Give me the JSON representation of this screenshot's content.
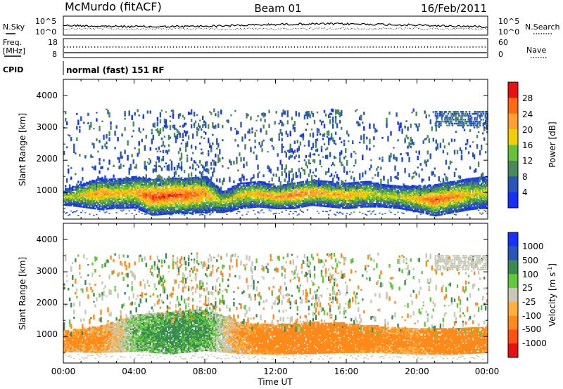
{
  "header": {
    "station": "McMurdo (fitACF)",
    "beam": "Beam 01",
    "date": "16/Feb/2011"
  },
  "strips": {
    "nsky": {
      "label": "N.Sky",
      "ticks": [
        "10^5",
        "10^0"
      ],
      "right_label": "N.Search",
      "right_ticks": [
        "10^5",
        "10^0"
      ]
    },
    "freq": {
      "label_line1": "Freq.",
      "label_line2": "[MHz]",
      "ticks": [
        "18",
        "8"
      ],
      "right_label": "Nave",
      "right_ticks": [
        "60",
        "0"
      ]
    },
    "cpid": {
      "label": "CPID",
      "program": "normal (fast) 151 RF"
    }
  },
  "axes": {
    "x_label": "Time UT",
    "x_ticks": [
      "00:00",
      "04:00",
      "08:00",
      "12:00",
      "16:00",
      "20:00",
      "00:00"
    ],
    "y_label": "Slant Range [km]",
    "y_ticks": [
      "1000",
      "2000",
      "3000",
      "4000"
    ]
  },
  "colorbars": {
    "power": {
      "label": "Power [dB]",
      "ticks": [
        "4",
        "8",
        "12",
        "16",
        "20",
        "24",
        "28"
      ],
      "colors": [
        "#1530ff",
        "#2a55b8",
        "#4a8a5a",
        "#66c23a",
        "#f0d000",
        "#ffa030",
        "#ff6a10",
        "#e81010"
      ]
    },
    "velocity": {
      "label": "Velocity [m s",
      "label_sup": "-1",
      "label_end": "]",
      "ticks": [
        "1000",
        "500",
        "100",
        "25",
        "-25",
        "-100",
        "-500",
        "-1000"
      ],
      "colors": [
        "#1530ff",
        "#2a55b8",
        "#3a8a56",
        "#60c83a",
        "#c8c8b8",
        "#ffb040",
        "#ff8a1a",
        "#ff5010",
        "#e81010"
      ]
    }
  },
  "chart_data": [
    {
      "type": "heatmap",
      "title": "",
      "xlabel": "Time UT",
      "ylabel": "Slant Range [km]",
      "x_range_hours": [
        0,
        24
      ],
      "y_range_km": [
        180,
        4500
      ],
      "colorbar_label": "Power [dB]",
      "main_echo_band": [
        {
          "t": 0,
          "center_km": 850,
          "half_width_km": 150,
          "peak_dB": 16
        },
        {
          "t": 1,
          "center_km": 900,
          "half_width_km": 220,
          "peak_dB": 20
        },
        {
          "t": 2,
          "center_km": 950,
          "half_width_km": 300,
          "peak_dB": 24
        },
        {
          "t": 3,
          "center_km": 950,
          "half_width_km": 280,
          "peak_dB": 20
        },
        {
          "t": 4,
          "center_km": 1000,
          "half_width_km": 300,
          "peak_dB": 22
        },
        {
          "t": 5,
          "center_km": 850,
          "half_width_km": 350,
          "peak_dB": 30
        },
        {
          "t": 6,
          "center_km": 900,
          "half_width_km": 350,
          "peak_dB": 28
        },
        {
          "t": 7,
          "center_km": 900,
          "half_width_km": 350,
          "peak_dB": 28
        },
        {
          "t": 8,
          "center_km": 950,
          "half_width_km": 350,
          "peak_dB": 24
        },
        {
          "t": 9,
          "center_km": 700,
          "half_width_km": 200,
          "peak_dB": 16
        },
        {
          "t": 10,
          "center_km": 900,
          "half_width_km": 250,
          "peak_dB": 20
        },
        {
          "t": 11,
          "center_km": 950,
          "half_width_km": 250,
          "peak_dB": 22
        },
        {
          "t": 12,
          "center_km": 850,
          "half_width_km": 220,
          "peak_dB": 24
        },
        {
          "t": 13,
          "center_km": 900,
          "half_width_km": 250,
          "peak_dB": 26
        },
        {
          "t": 14,
          "center_km": 1000,
          "half_width_km": 250,
          "peak_dB": 24
        },
        {
          "t": 15,
          "center_km": 950,
          "half_width_km": 250,
          "peak_dB": 22
        },
        {
          "t": 16,
          "center_km": 900,
          "half_width_km": 250,
          "peak_dB": 22
        },
        {
          "t": 17,
          "center_km": 950,
          "half_width_km": 250,
          "peak_dB": 20
        },
        {
          "t": 18,
          "center_km": 900,
          "half_width_km": 220,
          "peak_dB": 18
        },
        {
          "t": 19,
          "center_km": 850,
          "half_width_km": 220,
          "peak_dB": 18
        },
        {
          "t": 20,
          "center_km": 800,
          "half_width_km": 250,
          "peak_dB": 22
        },
        {
          "t": 21,
          "center_km": 750,
          "half_width_km": 300,
          "peak_dB": 28
        },
        {
          "t": 22,
          "center_km": 850,
          "half_width_km": 300,
          "peak_dB": 24
        },
        {
          "t": 23,
          "center_km": 950,
          "half_width_km": 300,
          "peak_dB": 20
        },
        {
          "t": 24,
          "center_km": 1000,
          "half_width_km": 300,
          "peak_dB": 18
        }
      ]
    },
    {
      "type": "heatmap",
      "title": "",
      "xlabel": "Time UT",
      "ylabel": "Slant Range [km]",
      "x_range_hours": [
        0,
        24
      ],
      "y_range_km": [
        180,
        4500
      ],
      "colorbar_label": "Velocity [m s-1]",
      "main_echo_band": [
        {
          "t": 0,
          "center_km": 850,
          "half_width_km": 200,
          "velocity": -100
        },
        {
          "t": 2,
          "center_km": 900,
          "half_width_km": 250,
          "velocity": -100
        },
        {
          "t": 4,
          "center_km": 1100,
          "half_width_km": 350,
          "velocity": 50
        },
        {
          "t": 6,
          "center_km": 1100,
          "half_width_km": 400,
          "velocity": 100
        },
        {
          "t": 8,
          "center_km": 1200,
          "half_width_km": 400,
          "velocity": 80
        },
        {
          "t": 10,
          "center_km": 950,
          "half_width_km": 300,
          "velocity": -80
        },
        {
          "t": 12,
          "center_km": 900,
          "half_width_km": 280,
          "velocity": -150
        },
        {
          "t": 14,
          "center_km": 950,
          "half_width_km": 300,
          "velocity": -200
        },
        {
          "t": 16,
          "center_km": 950,
          "half_width_km": 280,
          "velocity": -150
        },
        {
          "t": 18,
          "center_km": 900,
          "half_width_km": 250,
          "velocity": -120
        },
        {
          "t": 20,
          "center_km": 850,
          "half_width_km": 250,
          "velocity": -100
        },
        {
          "t": 22,
          "center_km": 850,
          "half_width_km": 250,
          "velocity": -200
        },
        {
          "t": 24,
          "center_km": 900,
          "half_width_km": 250,
          "velocity": -150
        }
      ]
    }
  ]
}
